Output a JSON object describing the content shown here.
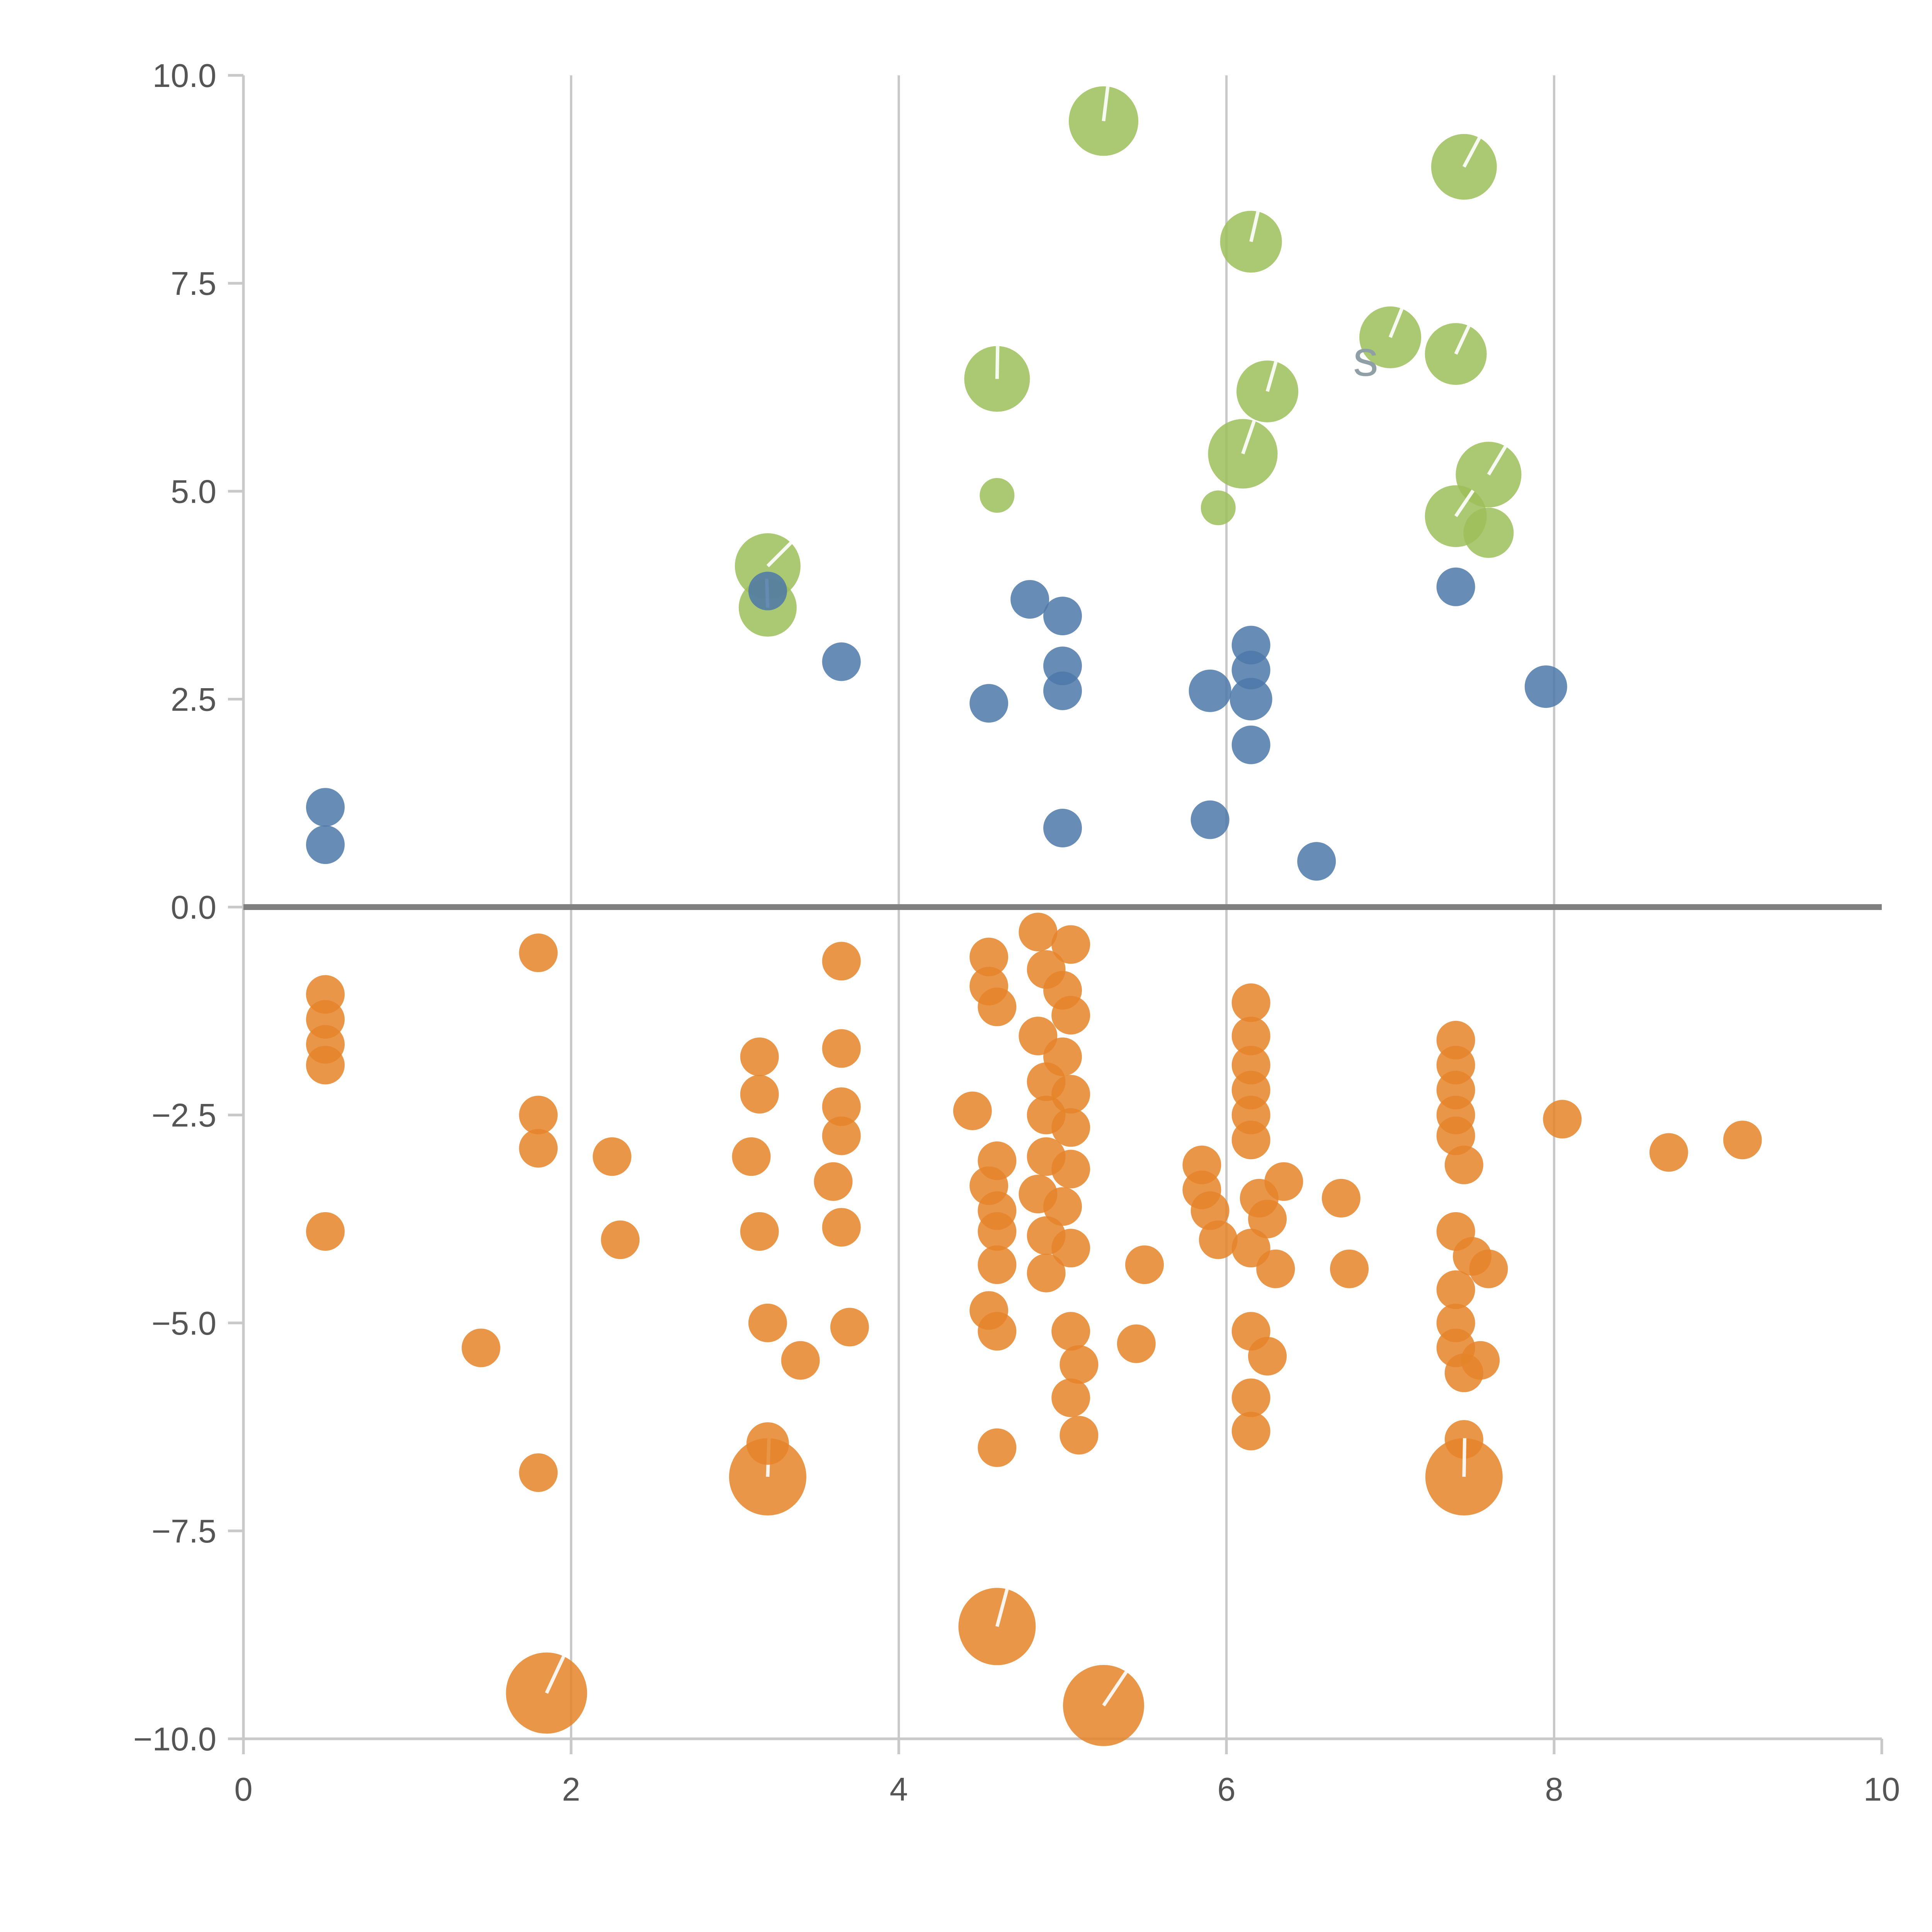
{
  "chart_data": {
    "type": "scatter",
    "title": "",
    "xlabel": "",
    "ylabel": "",
    "xlim": [
      0,
      10
    ],
    "ylim": [
      -10,
      10
    ],
    "grid": "vertical gridlines only",
    "grid_x": [
      2,
      4,
      6,
      8
    ],
    "zero_line_y": 0,
    "legend": "none",
    "x_ticks": [
      0,
      2,
      4,
      6,
      8,
      10
    ],
    "x_tick_labels": [
      "0",
      "2",
      "4",
      "6",
      "8",
      "10"
    ],
    "y_ticks": [
      -10,
      -7.5,
      -5,
      -2.5,
      0,
      2.5,
      5,
      7.5,
      10
    ],
    "y_tick_labels": [
      "−10.0",
      "−7.5",
      "−5.0",
      "−2.5",
      "0.0",
      "2.5",
      "5.0",
      "7.5",
      "10.0"
    ],
    "annotations": [
      {
        "text": "s",
        "x": 6.85,
        "y": 6.6,
        "color": "#8f9fa6",
        "size": 26
      }
    ],
    "marker_note": "large bubbles have a thin white radial tick from center to rim",
    "series": [
      {
        "name": "green",
        "color": "#9CBE59",
        "opacity": 0.85,
        "points": [
          [
            3.2,
            4.1,
            17
          ],
          [
            3.2,
            3.6,
            15
          ],
          [
            4.6,
            6.35,
            17
          ],
          [
            4.6,
            4.95,
            9
          ],
          [
            5.25,
            9.45,
            18
          ],
          [
            5.95,
            4.8,
            9
          ],
          [
            6.15,
            8.0,
            16
          ],
          [
            6.25,
            6.2,
            16
          ],
          [
            6.1,
            5.45,
            18
          ],
          [
            7.0,
            6.85,
            16
          ],
          [
            7.4,
            6.65,
            16
          ],
          [
            7.45,
            8.9,
            17
          ],
          [
            7.6,
            5.2,
            17
          ],
          [
            7.4,
            4.7,
            16
          ],
          [
            7.6,
            4.5,
            13
          ]
        ]
      },
      {
        "name": "blue",
        "color": "#4C78A8",
        "opacity": 0.85,
        "points": [
          [
            0.5,
            1.2,
            10
          ],
          [
            0.5,
            0.75,
            10
          ],
          [
            3.2,
            3.8,
            10
          ],
          [
            3.65,
            2.95,
            10
          ],
          [
            4.55,
            2.45,
            10
          ],
          [
            4.8,
            3.7,
            10
          ],
          [
            5.0,
            3.5,
            10
          ],
          [
            5.0,
            2.9,
            10
          ],
          [
            5.0,
            2.6,
            10
          ],
          [
            5.0,
            0.95,
            10
          ],
          [
            5.9,
            2.6,
            11
          ],
          [
            6.15,
            3.15,
            10
          ],
          [
            6.15,
            2.85,
            10
          ],
          [
            6.15,
            2.5,
            11
          ],
          [
            6.15,
            1.95,
            10
          ],
          [
            5.9,
            1.05,
            10
          ],
          [
            6.55,
            0.55,
            10
          ],
          [
            7.4,
            3.85,
            10
          ],
          [
            7.95,
            2.65,
            11
          ]
        ]
      },
      {
        "name": "orange",
        "color": "#E58429",
        "opacity": 0.85,
        "points": [
          [
            0.5,
            -1.05,
            10
          ],
          [
            0.5,
            -1.35,
            10
          ],
          [
            0.5,
            -1.65,
            10
          ],
          [
            0.5,
            -1.9,
            10
          ],
          [
            0.5,
            -3.9,
            10
          ],
          [
            1.45,
            -5.3,
            10
          ],
          [
            1.8,
            -0.55,
            10
          ],
          [
            1.8,
            -2.5,
            10
          ],
          [
            1.8,
            -2.9,
            10
          ],
          [
            1.8,
            -6.8,
            10
          ],
          [
            1.85,
            -9.45,
            21
          ],
          [
            2.25,
            -3.0,
            10
          ],
          [
            2.3,
            -4.0,
            10
          ],
          [
            3.15,
            -1.8,
            10
          ],
          [
            3.15,
            -2.25,
            10
          ],
          [
            3.1,
            -3.0,
            10
          ],
          [
            3.15,
            -3.9,
            10
          ],
          [
            3.2,
            -5.0,
            10
          ],
          [
            3.4,
            -5.45,
            10
          ],
          [
            3.2,
            -6.85,
            20
          ],
          [
            3.2,
            -6.45,
            11
          ],
          [
            3.65,
            -0.65,
            10
          ],
          [
            3.65,
            -1.7,
            10
          ],
          [
            3.65,
            -2.4,
            10
          ],
          [
            3.65,
            -2.75,
            10
          ],
          [
            3.6,
            -3.3,
            10
          ],
          [
            3.65,
            -3.85,
            10
          ],
          [
            3.7,
            -5.05,
            10
          ],
          [
            4.45,
            -2.45,
            10
          ],
          [
            4.55,
            -0.6,
            10
          ],
          [
            4.55,
            -0.95,
            10
          ],
          [
            4.6,
            -1.2,
            10
          ],
          [
            4.6,
            -3.05,
            10
          ],
          [
            4.55,
            -3.35,
            10
          ],
          [
            4.6,
            -3.65,
            10
          ],
          [
            4.6,
            -3.9,
            10
          ],
          [
            4.6,
            -4.3,
            10
          ],
          [
            4.55,
            -4.85,
            10
          ],
          [
            4.6,
            -5.1,
            10
          ],
          [
            4.6,
            -6.5,
            10
          ],
          [
            4.6,
            -8.65,
            20
          ],
          [
            4.85,
            -0.3,
            10
          ],
          [
            5.05,
            -0.45,
            10
          ],
          [
            4.9,
            -0.75,
            10
          ],
          [
            5.0,
            -1.0,
            10
          ],
          [
            5.05,
            -1.3,
            10
          ],
          [
            4.85,
            -1.55,
            10
          ],
          [
            5.0,
            -1.8,
            10
          ],
          [
            4.9,
            -2.1,
            10
          ],
          [
            5.05,
            -2.25,
            10
          ],
          [
            4.9,
            -2.5,
            10
          ],
          [
            5.05,
            -2.65,
            10
          ],
          [
            4.9,
            -3.0,
            10
          ],
          [
            5.05,
            -3.15,
            10
          ],
          [
            4.85,
            -3.45,
            10
          ],
          [
            5.0,
            -3.6,
            10
          ],
          [
            4.9,
            -3.95,
            10
          ],
          [
            5.05,
            -4.1,
            10
          ],
          [
            4.9,
            -4.4,
            10
          ],
          [
            5.05,
            -5.1,
            10
          ],
          [
            5.1,
            -5.5,
            10
          ],
          [
            5.05,
            -5.9,
            10
          ],
          [
            5.1,
            -6.35,
            10
          ],
          [
            5.25,
            -9.6,
            21
          ],
          [
            5.45,
            -5.25,
            10
          ],
          [
            5.5,
            -4.3,
            10
          ],
          [
            5.85,
            -3.1,
            10
          ],
          [
            5.85,
            -3.4,
            10
          ],
          [
            5.9,
            -3.65,
            10
          ],
          [
            5.95,
            -4.0,
            10
          ],
          [
            6.15,
            -1.15,
            10
          ],
          [
            6.15,
            -1.55,
            10
          ],
          [
            6.15,
            -1.9,
            10
          ],
          [
            6.15,
            -2.2,
            10
          ],
          [
            6.15,
            -2.5,
            10
          ],
          [
            6.15,
            -2.8,
            10
          ],
          [
            6.2,
            -3.5,
            10
          ],
          [
            6.25,
            -3.75,
            10
          ],
          [
            6.15,
            -4.1,
            10
          ],
          [
            6.3,
            -4.35,
            10
          ],
          [
            6.15,
            -5.1,
            10
          ],
          [
            6.25,
            -5.4,
            10
          ],
          [
            6.15,
            -5.9,
            10
          ],
          [
            6.15,
            -6.3,
            10
          ],
          [
            6.35,
            -3.3,
            10
          ],
          [
            6.7,
            -3.5,
            10
          ],
          [
            6.75,
            -4.35,
            10
          ],
          [
            7.4,
            -1.6,
            10
          ],
          [
            7.4,
            -1.9,
            10
          ],
          [
            7.4,
            -2.2,
            10
          ],
          [
            7.4,
            -2.5,
            10
          ],
          [
            7.4,
            -2.75,
            10
          ],
          [
            7.45,
            -3.1,
            10
          ],
          [
            7.4,
            -3.9,
            10
          ],
          [
            7.5,
            -4.2,
            10
          ],
          [
            7.6,
            -4.35,
            10
          ],
          [
            7.4,
            -4.6,
            10
          ],
          [
            7.4,
            -5.0,
            10
          ],
          [
            7.4,
            -5.3,
            10
          ],
          [
            7.45,
            -5.6,
            10
          ],
          [
            7.55,
            -5.45,
            10
          ],
          [
            7.45,
            -6.4,
            10
          ],
          [
            7.45,
            -6.85,
            20
          ],
          [
            8.05,
            -2.55,
            10
          ],
          [
            8.7,
            -2.95,
            10
          ],
          [
            9.15,
            -2.8,
            10
          ]
        ]
      }
    ]
  },
  "colors": {
    "background": "#ffffff",
    "grid": "#c9c9c9",
    "spine": "#c9c9c9",
    "zero_line": "#808080",
    "tick_label": "#555555",
    "marker_tick": "#ffffff"
  }
}
